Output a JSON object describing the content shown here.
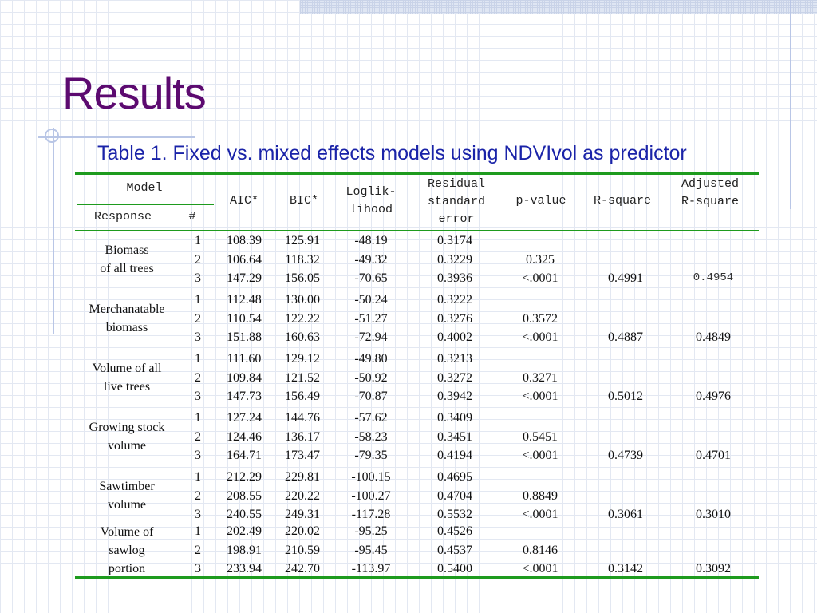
{
  "slide": {
    "title": "Results",
    "caption": "Table 1. Fixed vs. mixed effects models using NDVIvol as predictor"
  },
  "table": {
    "headers": {
      "model": "Model",
      "response": "Response",
      "num": "#",
      "aic": "AIC*",
      "bic": "BIC*",
      "loglik": "Loglik-\nlihood",
      "rse": "Residual\nstandard\nerror",
      "pvalue": "p-value",
      "rsq": "R-square",
      "adjrsq": "Adjusted\nR-square"
    },
    "groups": [
      {
        "response": "Biomass\nof all trees",
        "rows": [
          {
            "num": "1",
            "aic": "108.39",
            "bic": "125.91",
            "loglik": "-48.19",
            "rse": "0.3174",
            "p": "",
            "rsq": "",
            "adj": ""
          },
          {
            "num": "2",
            "aic": "106.64",
            "bic": "118.32",
            "loglik": "-49.32",
            "rse": "0.3229",
            "p": "0.325",
            "rsq": "",
            "adj": ""
          },
          {
            "num": "3",
            "aic": "147.29",
            "bic": "156.05",
            "loglik": "-70.65",
            "rse": "0.3936",
            "p": "<.0001",
            "rsq": "0.4991",
            "adj": "0.4954"
          }
        ]
      },
      {
        "response": "Merchanatable\nbiomass",
        "rows": [
          {
            "num": "1",
            "aic": "112.48",
            "bic": "130.00",
            "loglik": "-50.24",
            "rse": "0.3222",
            "p": "",
            "rsq": "",
            "adj": ""
          },
          {
            "num": "2",
            "aic": "110.54",
            "bic": "122.22",
            "loglik": "-51.27",
            "rse": "0.3276",
            "p": "0.3572",
            "rsq": "",
            "adj": ""
          },
          {
            "num": "3",
            "aic": "151.88",
            "bic": "160.63",
            "loglik": "-72.94",
            "rse": "0.4002",
            "p": "<.0001",
            "rsq": "0.4887",
            "adj": "0.4849"
          }
        ]
      },
      {
        "response": "Volume of all\nlive trees",
        "rows": [
          {
            "num": "1",
            "aic": "111.60",
            "bic": "129.12",
            "loglik": "-49.80",
            "rse": "0.3213",
            "p": "",
            "rsq": "",
            "adj": ""
          },
          {
            "num": "2",
            "aic": "109.84",
            "bic": "121.52",
            "loglik": "-50.92",
            "rse": "0.3272",
            "p": "0.3271",
            "rsq": "",
            "adj": ""
          },
          {
            "num": "3",
            "aic": "147.73",
            "bic": "156.49",
            "loglik": "-70.87",
            "rse": "0.3942",
            "p": "<.0001",
            "rsq": "0.5012",
            "adj": "0.4976"
          }
        ]
      },
      {
        "response": "Growing stock\nvolume",
        "rows": [
          {
            "num": "1",
            "aic": "127.24",
            "bic": "144.76",
            "loglik": "-57.62",
            "rse": "0.3409",
            "p": "",
            "rsq": "",
            "adj": ""
          },
          {
            "num": "2",
            "aic": "124.46",
            "bic": "136.17",
            "loglik": "-58.23",
            "rse": "0.3451",
            "p": "0.5451",
            "rsq": "",
            "adj": ""
          },
          {
            "num": "3",
            "aic": "164.71",
            "bic": "173.47",
            "loglik": "-79.35",
            "rse": "0.4194",
            "p": "<.0001",
            "rsq": "0.4739",
            "adj": "0.4701"
          }
        ]
      },
      {
        "response": "Sawtimber\nvolume",
        "rows": [
          {
            "num": "1",
            "aic": "212.29",
            "bic": "229.81",
            "loglik": "-100.15",
            "rse": "0.4695",
            "p": "",
            "rsq": "",
            "adj": ""
          },
          {
            "num": "2",
            "aic": "208.55",
            "bic": "220.22",
            "loglik": "-100.27",
            "rse": "0.4704",
            "p": "0.8849",
            "rsq": "",
            "adj": ""
          },
          {
            "num": "3",
            "aic": "240.55",
            "bic": "249.31",
            "loglik": "-117.28",
            "rse": "0.5532",
            "p": "<.0001",
            "rsq": "0.3061",
            "adj": "0.3010"
          }
        ]
      },
      {
        "response": "Volume of\nsawlog\nportion",
        "rows": [
          {
            "num": "1",
            "aic": "202.49",
            "bic": "220.02",
            "loglik": "-95.25",
            "rse": "0.4526",
            "p": "",
            "rsq": "",
            "adj": ""
          },
          {
            "num": "2",
            "aic": "198.91",
            "bic": "210.59",
            "loglik": "-95.45",
            "rse": "0.4537",
            "p": "0.8146",
            "rsq": "",
            "adj": ""
          },
          {
            "num": "3",
            "aic": "233.94",
            "bic": "242.70",
            "loglik": "-113.97",
            "rse": "0.5400",
            "p": "<.0001",
            "rsq": "0.3142",
            "adj": "0.3092"
          }
        ]
      }
    ]
  }
}
